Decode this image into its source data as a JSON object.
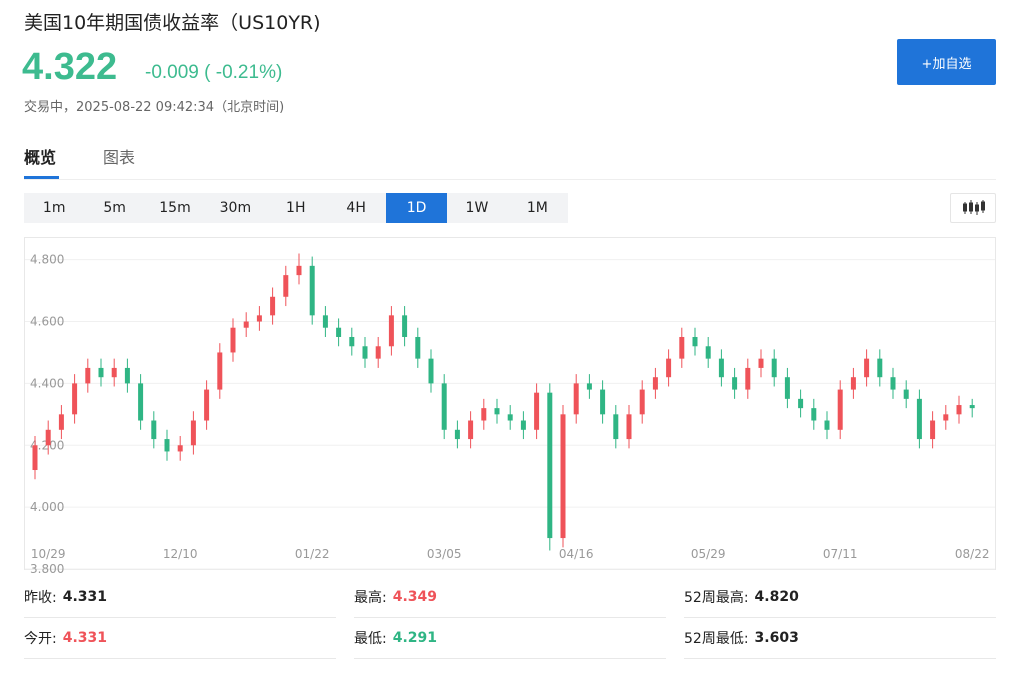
{
  "header": {
    "title": "美国10年期国债收益率（US10YR)",
    "price": "4.322",
    "change": "-0.009 ( -0.21%)",
    "status": "交易中，2025-08-22 09:42:34（北京时间)",
    "button": "+加自选"
  },
  "tabs": [
    "概览",
    "图表"
  ],
  "intervals": [
    "1m",
    "5m",
    "15m",
    "30m",
    "1H",
    "4H",
    "1D",
    "1W",
    "1M"
  ],
  "active_interval": "1D",
  "chart_data": {
    "type": "candlestick",
    "categories": [
      null,
      "10/29",
      null,
      null,
      null,
      null,
      null,
      null,
      null,
      null,
      null,
      "12/10",
      null,
      null,
      null,
      null,
      null,
      null,
      null,
      null,
      null,
      "01/22",
      null,
      null,
      null,
      null,
      null,
      null,
      null,
      null,
      null,
      "03/05",
      null,
      null,
      null,
      null,
      null,
      null,
      null,
      null,
      null,
      "04/16",
      null,
      null,
      null,
      null,
      null,
      null,
      null,
      null,
      null,
      "05/29",
      null,
      null,
      null,
      null,
      null,
      null,
      null,
      null,
      null,
      "07/11",
      null,
      null,
      null,
      null,
      null,
      null,
      null,
      null,
      null,
      "08/22"
    ],
    "open": [
      4.12,
      4.2,
      4.25,
      4.3,
      4.4,
      4.45,
      4.42,
      4.45,
      4.4,
      4.28,
      4.22,
      4.18,
      4.2,
      4.28,
      4.38,
      4.5,
      4.58,
      4.6,
      4.62,
      4.68,
      4.75,
      4.78,
      4.62,
      4.58,
      4.55,
      4.52,
      4.48,
      4.52,
      4.62,
      4.55,
      4.48,
      4.4,
      4.25,
      4.22,
      4.28,
      4.32,
      4.3,
      4.28,
      4.25,
      4.37,
      3.9,
      4.3,
      4.4,
      4.38,
      4.3,
      4.22,
      4.3,
      4.38,
      4.42,
      4.48,
      4.55,
      4.52,
      4.48,
      4.42,
      4.38,
      4.45,
      4.48,
      4.42,
      4.35,
      4.32,
      4.28,
      4.25,
      4.38,
      4.42,
      4.48,
      4.42,
      4.38,
      4.35,
      4.22,
      4.28,
      4.3,
      4.33
    ],
    "high": [
      4.23,
      4.28,
      4.33,
      4.43,
      4.48,
      4.48,
      4.48,
      4.48,
      4.43,
      4.31,
      4.25,
      4.23,
      4.31,
      4.41,
      4.53,
      4.61,
      4.63,
      4.65,
      4.71,
      4.78,
      4.82,
      4.81,
      4.65,
      4.61,
      4.58,
      4.55,
      4.55,
      4.65,
      4.65,
      4.58,
      4.51,
      4.43,
      4.28,
      4.31,
      4.35,
      4.35,
      4.33,
      4.31,
      4.4,
      4.4,
      4.33,
      4.43,
      4.43,
      4.41,
      4.33,
      4.33,
      4.41,
      4.45,
      4.51,
      4.58,
      4.58,
      4.55,
      4.51,
      4.45,
      4.48,
      4.51,
      4.51,
      4.45,
      4.38,
      4.35,
      4.31,
      4.41,
      4.45,
      4.51,
      4.51,
      4.45,
      4.41,
      4.38,
      4.31,
      4.33,
      4.36,
      4.35
    ],
    "low": [
      4.09,
      4.17,
      4.22,
      4.27,
      4.37,
      4.39,
      4.39,
      4.37,
      4.25,
      4.19,
      4.15,
      4.15,
      4.17,
      4.25,
      4.35,
      4.47,
      4.55,
      4.57,
      4.59,
      4.65,
      4.72,
      4.59,
      4.55,
      4.52,
      4.49,
      4.45,
      4.45,
      4.49,
      4.52,
      4.45,
      4.37,
      4.22,
      4.19,
      4.19,
      4.25,
      4.27,
      4.25,
      4.22,
      4.22,
      3.86,
      3.87,
      4.27,
      4.35,
      4.27,
      4.19,
      4.19,
      4.27,
      4.35,
      4.39,
      4.45,
      4.49,
      4.45,
      4.39,
      4.35,
      4.35,
      4.42,
      4.39,
      4.32,
      4.29,
      4.25,
      4.22,
      4.22,
      4.35,
      4.39,
      4.39,
      4.35,
      4.32,
      4.19,
      4.19,
      4.25,
      4.27,
      4.29
    ],
    "close": [
      4.2,
      4.25,
      4.3,
      4.4,
      4.45,
      4.42,
      4.45,
      4.4,
      4.28,
      4.22,
      4.18,
      4.2,
      4.28,
      4.38,
      4.5,
      4.58,
      4.6,
      4.62,
      4.68,
      4.75,
      4.78,
      4.62,
      4.58,
      4.55,
      4.52,
      4.48,
      4.52,
      4.62,
      4.55,
      4.48,
      4.4,
      4.25,
      4.22,
      4.28,
      4.32,
      4.3,
      4.28,
      4.25,
      4.37,
      3.9,
      4.3,
      4.4,
      4.38,
      4.3,
      4.22,
      4.3,
      4.38,
      4.42,
      4.48,
      4.55,
      4.52,
      4.48,
      4.42,
      4.38,
      4.45,
      4.48,
      4.42,
      4.35,
      4.32,
      4.28,
      4.25,
      4.38,
      4.42,
      4.48,
      4.42,
      4.38,
      4.35,
      4.22,
      4.28,
      4.3,
      4.33,
      4.32
    ],
    "up_color": "#ef5359",
    "down_color": "#2fb584",
    "ylim": [
      3.8,
      4.87
    ],
    "yticks": [
      {
        "value": 3.8,
        "label": "3.800"
      },
      {
        "value": 4.0,
        "label": "4.000"
      },
      {
        "value": 4.2,
        "label": "4.200"
      },
      {
        "value": 4.4,
        "label": "4.400"
      },
      {
        "value": 4.6,
        "label": "4.600"
      },
      {
        "value": 4.8,
        "label": "4.800"
      }
    ],
    "grid": true
  },
  "stats": [
    {
      "label": "昨收:",
      "value": "4.331",
      "color": "#222222"
    },
    {
      "label": "最高:",
      "value": "4.349",
      "color": "#ef5359"
    },
    {
      "label": "52周最高:",
      "value": "4.820",
      "color": "#222222"
    },
    {
      "label": "今开:",
      "value": "4.331",
      "color": "#ef5359"
    },
    {
      "label": "最低:",
      "value": "4.291",
      "color": "#2fb584"
    },
    {
      "label": "52周最低:",
      "value": "3.603",
      "color": "#222222"
    }
  ]
}
